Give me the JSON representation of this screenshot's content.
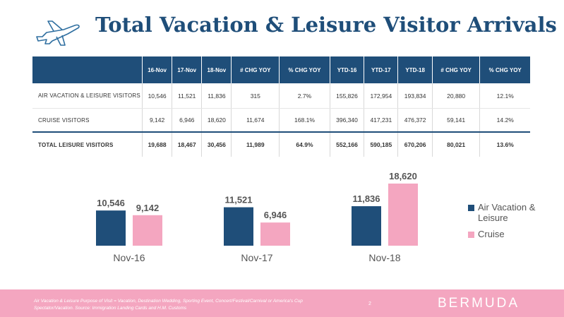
{
  "title": "Total Vacation & Leisure Visitor Arrivals",
  "icons": {
    "header": "airplane-icon"
  },
  "table": {
    "headers": [
      "",
      "16-Nov",
      "17-Nov",
      "18-Nov",
      "# CHG YOY",
      "% CHG YOY",
      "YTD-16",
      "YTD-17",
      "YTD-18",
      "# CHG YOY",
      "% CHG YOY"
    ],
    "rows": [
      [
        "AIR VACATION & LEISURE VISITORS",
        "10,546",
        "11,521",
        "11,836",
        "315",
        "2.7%",
        "155,826",
        "172,954",
        "193,834",
        "20,880",
        "12.1%"
      ],
      [
        "CRUISE VISITORS",
        "9,142",
        "6,946",
        "18,620",
        "11,674",
        "168.1%",
        "396,340",
        "417,231",
        "476,372",
        "59,141",
        "14.2%"
      ],
      [
        "TOTAL LEISURE VISITORS",
        "19,688",
        "18,467",
        "30,456",
        "11,989",
        "64.9%",
        "552,166",
        "590,185",
        "670,206",
        "80,021",
        "13.6%"
      ]
    ]
  },
  "chart_data": {
    "type": "bar",
    "categories": [
      "Nov-16",
      "Nov-17",
      "Nov-18"
    ],
    "series": [
      {
        "name": "Air Vacation & Leisure",
        "values": [
          10546,
          11521,
          11836
        ],
        "labels": [
          "10,546",
          "11,521",
          "11,836"
        ],
        "color": "#1f4e79"
      },
      {
        "name": "Cruise",
        "values": [
          9142,
          6946,
          18620
        ],
        "labels": [
          "9,142",
          "6,946",
          "18,620"
        ],
        "color": "#f4a6c0"
      }
    ],
    "legend_position": "right",
    "grid": false
  },
  "legend": {
    "air": "Air Vacation & Leisure",
    "cruise": "Cruise"
  },
  "footer": {
    "note": "Air Vacation & Leisure Purpose of Visit = Vacation, Destination Wedding, Sporting Event, Concert/Festival/Carnival or America's Cup Spectator/Vacation.  Source: Immigration Landing Cards and H.M. Customs",
    "page": "2",
    "logo": "BERMUDA"
  }
}
